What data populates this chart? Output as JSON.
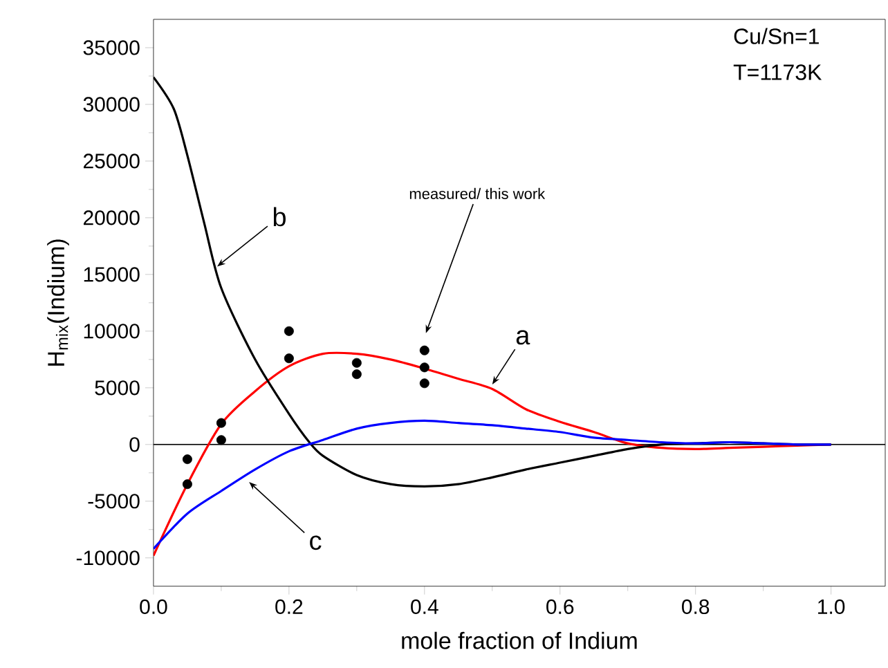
{
  "chart_data": {
    "type": "line",
    "xlabel": "mole fraction of Indium",
    "ylabel": "H$_{mix}$(Indium)",
    "xlim": [
      0,
      1.08
    ],
    "ylim": [
      -12500,
      37500
    ],
    "xticks": [
      {
        "value": 0,
        "label": "0.0"
      },
      {
        "value": 0.2,
        "label": "0.2"
      },
      {
        "value": 0.4,
        "label": "0.4"
      },
      {
        "value": 0.6,
        "label": "0.6"
      },
      {
        "value": 0.8,
        "label": "0.8"
      },
      {
        "value": 1.0,
        "label": "1.0"
      }
    ],
    "yticks": [
      -10000,
      -5000,
      0,
      5000,
      10000,
      15000,
      20000,
      25000,
      30000,
      35000
    ],
    "series": [
      {
        "type": "line",
        "color": "#ff0000",
        "x": [
          0,
          0.05,
          0.1,
          0.15,
          0.2,
          0.25,
          0.3,
          0.35,
          0.4,
          0.45,
          0.5,
          0.55,
          0.6,
          0.65,
          0.7,
          0.75,
          0.8,
          0.85,
          0.9,
          0.95,
          1.0
        ],
        "values": [
          -9800,
          -3500,
          1800,
          4700,
          6900,
          8000,
          8000,
          7500,
          6700,
          5800,
          4900,
          3100,
          2000,
          1100,
          100,
          -300,
          -400,
          -300,
          -200,
          -100,
          0
        ]
      },
      {
        "type": "line",
        "color": "#000000",
        "x": [
          0,
          0.03,
          0.05,
          0.075,
          0.1,
          0.15,
          0.2,
          0.23,
          0.25,
          0.3,
          0.35,
          0.4,
          0.45,
          0.5,
          0.55,
          0.6,
          0.65,
          0.7,
          0.75,
          0.8,
          0.85,
          0.9,
          0.95,
          1.0
        ],
        "values": [
          32400,
          29600,
          25500,
          19500,
          13800,
          7500,
          2700,
          200,
          -1000,
          -2700,
          -3500,
          -3700,
          -3500,
          -2900,
          -2200,
          -1600,
          -1000,
          -400,
          0,
          100,
          200,
          100,
          0,
          0
        ]
      },
      {
        "type": "line",
        "color": "#0000ff",
        "x": [
          0,
          0.05,
          0.1,
          0.15,
          0.2,
          0.25,
          0.3,
          0.35,
          0.4,
          0.45,
          0.5,
          0.55,
          0.6,
          0.65,
          0.7,
          0.75,
          0.8,
          0.85,
          0.9,
          0.95,
          1.0
        ],
        "values": [
          -9200,
          -6100,
          -4100,
          -2200,
          -600,
          400,
          1400,
          1900,
          2100,
          1900,
          1700,
          1400,
          1100,
          600,
          400,
          200,
          100,
          200,
          100,
          0,
          0
        ]
      },
      {
        "type": "scatter",
        "color": "#000000",
        "marker": "circle",
        "x": [
          0.05,
          0.05,
          0.1,
          0.1,
          0.2,
          0.2,
          0.3,
          0.3,
          0.4,
          0.4,
          0.4
        ],
        "values": [
          -1300,
          -3500,
          1900,
          400,
          10000,
          7600,
          7200,
          6200,
          8300,
          6800,
          5400
        ]
      }
    ],
    "ref_lines": [
      {
        "axis": "y",
        "value": 0,
        "color": "#000000"
      }
    ],
    "annotations": [
      "Cu/Sn=1",
      "T=1173K",
      "measured/ this work",
      {
        "text": "b",
        "x": 0.094,
        "y": 15700
      },
      {
        "text": "a",
        "x": 0.5,
        "y": 5300
      },
      {
        "text": "c",
        "x": 0.141,
        "y": -3300
      }
    ]
  }
}
